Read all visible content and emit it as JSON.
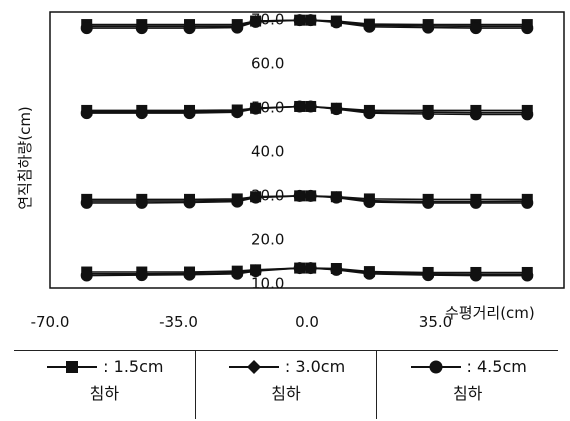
{
  "chart_data": {
    "type": "line",
    "title": "",
    "xlabel": "수평거리(cm)",
    "ylabel": "연직침하량(cm)",
    "xlim": [
      -70,
      70
    ],
    "x_ticks": [
      "-70.0",
      "-35.0",
      "0.0",
      "35.0"
    ],
    "y_ticks": [
      "10.0",
      "20.0",
      "30.0",
      "40.0",
      "50.0",
      "60.0",
      "70.0"
    ],
    "legend_placement": "bottom",
    "grid": false,
    "x": [
      -60,
      -45,
      -32,
      -19,
      -14,
      -2,
      1,
      8,
      17,
      33,
      46,
      60
    ],
    "groups": [
      {
        "level": 70,
        "series": [
          {
            "name": "1.5cm 침하",
            "marker": "square",
            "values": [
              68.6,
              68.6,
              68.6,
              68.6,
              69.4,
              69.6,
              69.6,
              69.4,
              68.7,
              68.6,
              68.6,
              68.6
            ]
          },
          {
            "name": "3.0cm 침하",
            "marker": "diamond",
            "values": [
              68.2,
              68.2,
              68.2,
              68.2,
              69.4,
              69.6,
              69.6,
              69.3,
              68.4,
              68.3,
              68.2,
              68.2
            ]
          },
          {
            "name": "4.5cm 침하",
            "marker": "circle",
            "values": [
              67.8,
              67.8,
              67.8,
              67.9,
              69.2,
              69.6,
              69.6,
              69.1,
              68.1,
              67.9,
              67.8,
              67.8
            ]
          }
        ]
      },
      {
        "level": 50,
        "series": [
          {
            "name": "1.5cm 침하",
            "marker": "square",
            "values": [
              49.1,
              49.1,
              49.1,
              49.2,
              49.6,
              50.0,
              50.0,
              49.6,
              49.1,
              49.1,
              49.1,
              49.1
            ]
          },
          {
            "name": "3.0cm 침하",
            "marker": "diamond",
            "values": [
              48.8,
              48.8,
              48.8,
              49.0,
              49.6,
              50.0,
              50.0,
              49.5,
              48.8,
              48.7,
              48.6,
              48.6
            ]
          },
          {
            "name": "4.5cm 침하",
            "marker": "circle",
            "values": [
              48.5,
              48.5,
              48.5,
              48.7,
              49.5,
              50.0,
              50.0,
              49.4,
              48.5,
              48.3,
              48.2,
              48.2
            ]
          }
        ]
      },
      {
        "level": 30,
        "series": [
          {
            "name": "1.5cm 침하",
            "marker": "square",
            "values": [
              28.9,
              28.9,
              28.9,
              29.0,
              29.5,
              29.7,
              29.7,
              29.5,
              29.0,
              28.9,
              28.9,
              28.9
            ]
          },
          {
            "name": "3.0cm 침하",
            "marker": "diamond",
            "values": [
              28.5,
              28.5,
              28.5,
              28.7,
              29.4,
              29.7,
              29.7,
              29.4,
              28.6,
              28.4,
              28.4,
              28.5
            ]
          },
          {
            "name": "4.5cm 침하",
            "marker": "circle",
            "values": [
              28.1,
              28.1,
              28.2,
              28.4,
              29.3,
              29.7,
              29.7,
              29.3,
              28.3,
              28.1,
              28.1,
              28.1
            ]
          }
        ]
      },
      {
        "level": 13,
        "series": [
          {
            "name": "1.5cm 침하",
            "marker": "square",
            "values": [
              12.4,
              12.4,
              12.4,
              12.6,
              12.9,
              13.3,
              13.3,
              13.2,
              12.5,
              12.3,
              12.3,
              12.3
            ]
          },
          {
            "name": "3.0cm 침하",
            "marker": "diamond",
            "values": [
              12.0,
              12.0,
              12.1,
              12.3,
              12.8,
              13.3,
              13.3,
              13.0,
              12.3,
              12.0,
              11.9,
              11.9
            ]
          },
          {
            "name": "4.5cm 침하",
            "marker": "circle",
            "values": [
              11.6,
              11.7,
              11.8,
              12.0,
              12.6,
              13.3,
              13.3,
              12.9,
              12.0,
              11.7,
              11.6,
              11.6
            ]
          }
        ]
      }
    ]
  },
  "legend": [
    {
      "marker": "square",
      "label": ": 1.5cm",
      "sub": "침하"
    },
    {
      "marker": "diamond",
      "label": ": 3.0cm",
      "sub": "침하"
    },
    {
      "marker": "circle",
      "label": ": 4.5cm",
      "sub": "침하"
    }
  ]
}
